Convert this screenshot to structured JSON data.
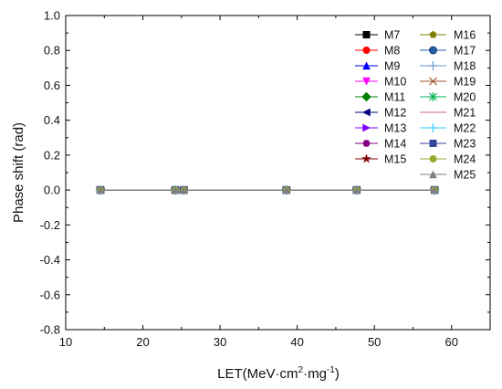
{
  "chart_data": {
    "type": "scatter",
    "title": "",
    "xlabel": "LET(MeV·cm²·mg⁻¹)",
    "xlabel_parts": {
      "pre": "LET(MeV·cm",
      "sup1": "2",
      "mid": "·mg",
      "sup2": "-1",
      "post": ")"
    },
    "ylabel": "Phase shift (rad)",
    "xlim": [
      10,
      65
    ],
    "ylim": [
      -0.8,
      1.0
    ],
    "xticks": [
      "10",
      "20",
      "30",
      "40",
      "50",
      "60"
    ],
    "yticks": [
      "-0.8",
      "-0.6",
      "-0.4",
      "-0.2",
      "0.0",
      "0.2",
      "0.4",
      "0.6",
      "0.8",
      "1.0"
    ],
    "grid": false,
    "legend_position": "top-right",
    "x": [
      14.5,
      24.2,
      25.3,
      38.6,
      47.7,
      57.8
    ],
    "series": [
      {
        "name": "M7",
        "marker": "square",
        "color": "#000000",
        "values": [
          0,
          0,
          0,
          0,
          0,
          0
        ]
      },
      {
        "name": "M8",
        "marker": "circle",
        "color": "#ff0000",
        "values": [
          0,
          0,
          0,
          0,
          0,
          0
        ]
      },
      {
        "name": "M9",
        "marker": "triangle-up",
        "color": "#0000ff",
        "values": [
          0,
          0,
          0,
          0,
          0,
          0
        ]
      },
      {
        "name": "M10",
        "marker": "triangle-down",
        "color": "#ff00ff",
        "values": [
          0,
          0,
          0,
          0,
          0,
          0
        ]
      },
      {
        "name": "M11",
        "marker": "diamond",
        "color": "#008000",
        "values": [
          0,
          0,
          0,
          0,
          0,
          0
        ]
      },
      {
        "name": "M12",
        "marker": "triangle-left",
        "color": "#000080",
        "values": [
          0,
          0,
          0,
          0,
          0,
          0
        ]
      },
      {
        "name": "M13",
        "marker": "triangle-right",
        "color": "#8000ff",
        "values": [
          0,
          0,
          0,
          0,
          0,
          0
        ]
      },
      {
        "name": "M14",
        "marker": "hexagon",
        "color": "#800080",
        "values": [
          0,
          0,
          0,
          0,
          0,
          0
        ]
      },
      {
        "name": "M15",
        "marker": "star",
        "color": "#800000",
        "values": [
          0,
          0,
          0,
          0,
          0,
          0
        ]
      },
      {
        "name": "M16",
        "marker": "pentagon",
        "color": "#808000",
        "values": [
          0,
          0,
          0,
          0,
          0,
          0
        ]
      },
      {
        "name": "M17",
        "marker": "ball",
        "color": "#1f5fa8",
        "values": [
          0,
          0,
          0,
          0,
          0,
          0
        ]
      },
      {
        "name": "M18",
        "marker": "plus",
        "color": "#6699cc",
        "values": [
          0,
          0,
          0,
          0,
          0,
          0
        ]
      },
      {
        "name": "M19",
        "marker": "x",
        "color": "#a0522d",
        "values": [
          0,
          0,
          0,
          0,
          0,
          0
        ]
      },
      {
        "name": "M20",
        "marker": "asterisk",
        "color": "#00b050",
        "values": [
          0,
          0,
          0,
          0,
          0,
          0
        ]
      },
      {
        "name": "M21",
        "marker": "none",
        "color": "#cc6677",
        "values": [
          0,
          0,
          0,
          0,
          0,
          0
        ]
      },
      {
        "name": "M22",
        "marker": "plus",
        "color": "#33ccff",
        "values": [
          0,
          0,
          0,
          0,
          0,
          0
        ]
      },
      {
        "name": "M23",
        "marker": "square",
        "color": "#334499",
        "values": [
          0,
          0,
          0,
          0,
          0,
          0
        ]
      },
      {
        "name": "M24",
        "marker": "circle",
        "color": "#99aa33",
        "values": [
          0,
          0,
          0,
          0,
          0,
          0
        ]
      },
      {
        "name": "M25",
        "marker": "triangle-up",
        "color": "#808080",
        "values": [
          0,
          0,
          0,
          0,
          0,
          0
        ]
      }
    ]
  }
}
